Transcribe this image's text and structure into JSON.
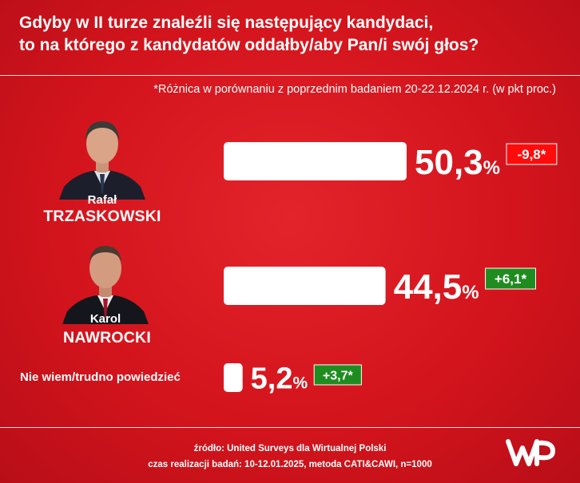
{
  "title": {
    "line1": "Gdyby w II turze znaleźli się następujący kandydaci,",
    "line2": "to na którego z kandydatów oddałby/aby Pan/i swój głos?"
  },
  "note": "*Różnica w porównaniu z poprzednim badaniem 20-22.12.2024 r. (w pkt proc.)",
  "candidates": [
    {
      "first_name": "Rafał",
      "last_name": "TRZASKOWSKI"
    },
    {
      "first_name": "Karol",
      "last_name": "NAWROCKI"
    }
  ],
  "other_label": "Nie wiem/trudno powiedzieć",
  "chart_data": {
    "type": "bar",
    "orientation": "horizontal",
    "categories": [
      "Rafał TRZASKOWSKI",
      "Karol NAWROCKI",
      "Nie wiem/trudno powiedzieć"
    ],
    "values": [
      50.3,
      44.5,
      5.2
    ],
    "value_labels": [
      "50,3",
      "44,5",
      "5,2"
    ],
    "unit": "%",
    "change_labels": [
      "-9,8*",
      "+6,1*",
      "+3,7*"
    ],
    "changes": [
      -9.8,
      6.1,
      3.7
    ],
    "colors": {
      "background": "#d6121d",
      "bar": "#ffffff",
      "increase": "#1f8c1f",
      "decrease": "#ff0b0b"
    }
  },
  "footer": {
    "source": "źródło: United Surveys dla Wirtualnej Polski",
    "details": "czas realizacji badań: 10-12.01.2025, metoda CATI&CAWI, n=1000"
  },
  "logo_icon": "wp-logo-icon"
}
